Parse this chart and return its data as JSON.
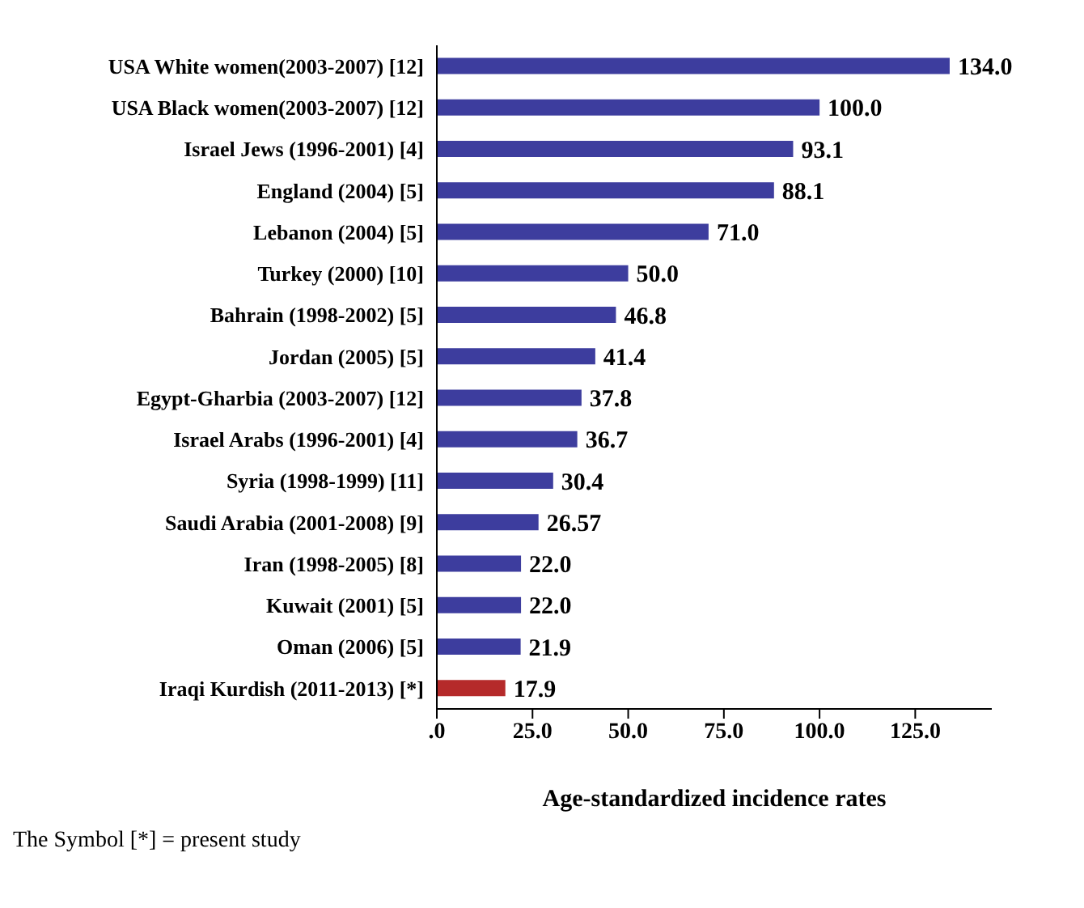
{
  "chart_data": {
    "type": "bar",
    "orientation": "horizontal",
    "xlabel": "Age-standardized incidence rates",
    "categories": [
      "USA White women(2003-2007) [12]",
      "USA Black women(2003-2007) [12]",
      "Israel Jews (1996-2001) [4]",
      "England (2004) [5]",
      "Lebanon (2004) [5]",
      "Turkey  (2000) [10]",
      "Bahrain  (1998-2002) [5]",
      "Jordan (2005) [5]",
      "Egypt-Gharbia (2003-2007) [12]",
      "Israel Arabs (1996-2001) [4]",
      "Syria (1998-1999) [11]",
      "Saudi Arabia (2001-2008) [9]",
      "Iran (1998-2005) [8]",
      "Kuwait (2001) [5]",
      "Oman (2006) [5]",
      "Iraqi Kurdish (2011-2013) [*]"
    ],
    "values": [
      134.0,
      100.0,
      93.1,
      88.1,
      71.0,
      50.0,
      46.8,
      41.4,
      37.8,
      36.7,
      30.4,
      26.57,
      22.0,
      22.0,
      21.9,
      17.9
    ],
    "value_labels": [
      "134.0",
      "100.0",
      "93.1",
      "88.1",
      "71.0",
      "50.0",
      "46.8",
      "41.4",
      "37.8",
      "36.7",
      "30.4",
      "26.57",
      "22.0",
      "22.0",
      "21.9",
      "17.9"
    ],
    "colors": [
      "#3d3d9e",
      "#3d3d9e",
      "#3d3d9e",
      "#3d3d9e",
      "#3d3d9e",
      "#3d3d9e",
      "#3d3d9e",
      "#3d3d9e",
      "#3d3d9e",
      "#3d3d9e",
      "#3d3d9e",
      "#3d3d9e",
      "#3d3d9e",
      "#3d3d9e",
      "#3d3d9e",
      "#b52a2a"
    ],
    "xlim": [
      0,
      145
    ],
    "xticks": [
      {
        "value": 0,
        "label": ".0"
      },
      {
        "value": 25,
        "label": "25.0"
      },
      {
        "value": 50,
        "label": "50.0"
      },
      {
        "value": 75,
        "label": "75.0"
      },
      {
        "value": 100,
        "label": "100.0"
      },
      {
        "value": 125,
        "label": "125.0"
      }
    ],
    "grid": false,
    "annotations": [
      "The Symbol [*] = present study"
    ]
  }
}
